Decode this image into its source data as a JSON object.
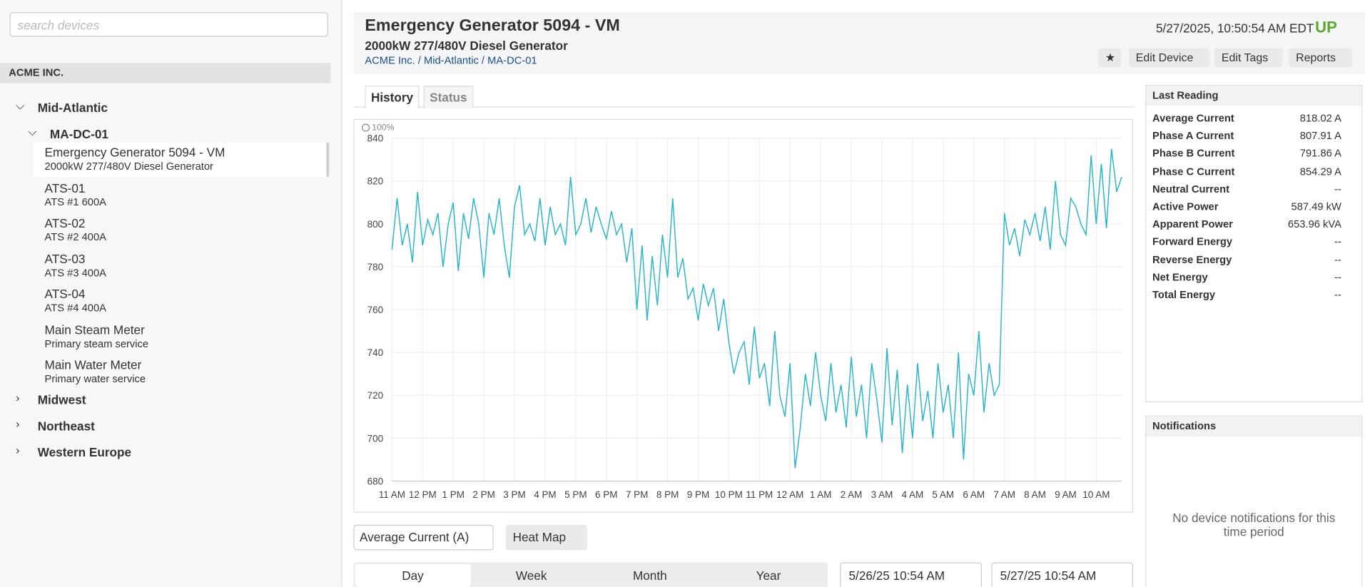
{
  "search_placeholder": "search devices",
  "org": "ACME INC.",
  "tree": [
    {
      "label": "Mid-Atlantic",
      "children": [
        {
          "label": "MA-DC-01",
          "devices": [
            {
              "name": "Emergency Generator 5094 - VM",
              "desc": "2000kW 277/480V Diesel Generator"
            },
            {
              "name": "ATS-01",
              "desc": "ATS #1 600A"
            },
            {
              "name": "ATS-02",
              "desc": "ATS #2 400A"
            },
            {
              "name": "ATS-03",
              "desc": "ATS #3 400A"
            },
            {
              "name": "ATS-04",
              "desc": "ATS #4 400A"
            },
            {
              "name": "Main Steam Meter",
              "desc": "Primary steam service"
            },
            {
              "name": "Main Water Meter",
              "desc": "Primary water service"
            }
          ]
        }
      ]
    },
    {
      "label": "Midwest"
    },
    {
      "label": "Northeast"
    },
    {
      "label": "Western Europe"
    }
  ],
  "header": {
    "title": "Emergency Generator 5094 - VM",
    "subtitle": "2000kW 277/480V Diesel Generator",
    "breadcrumb": "ACME Inc. / Mid-Atlantic / MA-DC-01",
    "timestamp": "5/27/2025, 10:50:54 AM EDT",
    "status": "UP",
    "buttons": [
      "Edit Device",
      "Edit Tags",
      "Reports"
    ]
  },
  "tabs": [
    "History",
    "Status"
  ],
  "chart_data": {
    "type": "line",
    "zoom_label": "100%",
    "color": "#2bb5c9",
    "grid": true,
    "xlim": [
      0,
      143
    ],
    "xticks": [
      {
        "value": 0,
        "label": "11 AM"
      },
      {
        "value": 6,
        "label": "12 PM"
      },
      {
        "value": 12,
        "label": "1 PM"
      },
      {
        "value": 18,
        "label": "2 PM"
      },
      {
        "value": 24,
        "label": "3 PM"
      },
      {
        "value": 30,
        "label": "4 PM"
      },
      {
        "value": 36,
        "label": "5 PM"
      },
      {
        "value": 42,
        "label": "6 PM"
      },
      {
        "value": 48,
        "label": "7 PM"
      },
      {
        "value": 54,
        "label": "8 PM"
      },
      {
        "value": 60,
        "label": "9 PM"
      },
      {
        "value": 66,
        "label": "10 PM"
      },
      {
        "value": 72,
        "label": "11 PM"
      },
      {
        "value": 78,
        "label": "12 AM"
      },
      {
        "value": 84,
        "label": "1 AM"
      },
      {
        "value": 90,
        "label": "2 AM"
      },
      {
        "value": 96,
        "label": "3 AM"
      },
      {
        "value": 102,
        "label": "4 AM"
      },
      {
        "value": 108,
        "label": "5 AM"
      },
      {
        "value": 114,
        "label": "6 AM"
      },
      {
        "value": 120,
        "label": "7 AM"
      },
      {
        "value": 126,
        "label": "8 AM"
      },
      {
        "value": 132,
        "label": "9 AM"
      },
      {
        "value": 138,
        "label": "10 AM"
      }
    ],
    "ylim": [
      680,
      840
    ],
    "yticks": [
      680,
      700,
      720,
      740,
      760,
      780,
      800,
      820,
      840
    ],
    "values": [
      788,
      812,
      790,
      800,
      782,
      815,
      790,
      802,
      795,
      805,
      780,
      800,
      810,
      778,
      805,
      793,
      812,
      800,
      775,
      805,
      795,
      812,
      790,
      775,
      808,
      818,
      795,
      800,
      792,
      812,
      790,
      808,
      795,
      800,
      790,
      822,
      795,
      800,
      812,
      796,
      808,
      800,
      793,
      806,
      795,
      800,
      782,
      798,
      760,
      790,
      755,
      785,
      762,
      795,
      775,
      812,
      775,
      784,
      765,
      770,
      755,
      772,
      762,
      770,
      750,
      765,
      745,
      730,
      740,
      745,
      725,
      752,
      728,
      735,
      715,
      750,
      720,
      710,
      735,
      686,
      705,
      730,
      715,
      740,
      720,
      708,
      735,
      712,
      725,
      705,
      738,
      710,
      725,
      700,
      735,
      718,
      698,
      742,
      706,
      732,
      693,
      725,
      700,
      735,
      708,
      722,
      700,
      735,
      712,
      725,
      700,
      740,
      690,
      730,
      720,
      750,
      712,
      735,
      720,
      725,
      805,
      790,
      798,
      785,
      802,
      795,
      805,
      792,
      808,
      788,
      820,
      795,
      790,
      812,
      808,
      800,
      795,
      832,
      800,
      828,
      798,
      835,
      815,
      822
    ]
  },
  "controls": {
    "metric": "Average Current (A)",
    "heatmap": "Heat Map",
    "ranges": [
      "Day",
      "Week",
      "Month",
      "Year"
    ],
    "start": "5/26/25 10:54 AM",
    "end": "5/27/25 10:54 AM"
  },
  "last_reading": {
    "title": "Last Reading",
    "rows": [
      [
        "Average Current",
        "818.02 A"
      ],
      [
        "Phase A Current",
        "807.91 A"
      ],
      [
        "Phase B Current",
        "791.86 A"
      ],
      [
        "Phase C Current",
        "854.29 A"
      ],
      [
        "Neutral Current",
        "--"
      ],
      [
        "Active Power",
        "587.49 kW"
      ],
      [
        "Apparent Power",
        "653.96 kVA"
      ],
      [
        "Forward Energy",
        "--"
      ],
      [
        "Reverse Energy",
        "--"
      ],
      [
        "Net Energy",
        "--"
      ],
      [
        "Total Energy",
        "--"
      ]
    ]
  },
  "notifications": {
    "title": "Notifications",
    "empty": "No device notifications for this time period"
  }
}
